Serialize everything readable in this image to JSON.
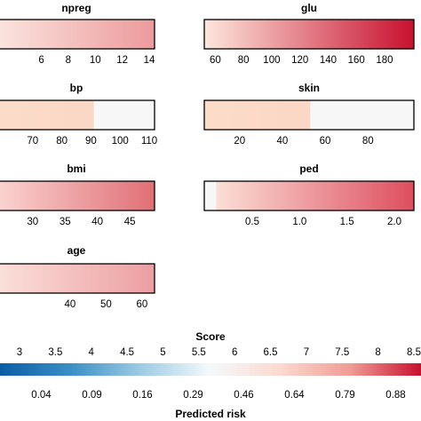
{
  "chart_data": {
    "type": "heatmap",
    "panels": [
      {
        "id": "npreg",
        "title": "npreg",
        "ticks": [
          6,
          8,
          10,
          12,
          14
        ],
        "range": [
          3.2,
          14
        ],
        "filled_to": 14,
        "color_from": "#fbe4de",
        "color_to": "#ec9a9c"
      },
      {
        "id": "glu",
        "title": "glu",
        "ticks": [
          60,
          80,
          100,
          120,
          140,
          160,
          180
        ],
        "range": [
          56,
          197
        ],
        "filled_to": 197,
        "color_from": "#fde6dc",
        "color_to": "#c8102e"
      },
      {
        "id": "bp",
        "title": "bp",
        "ticks": [
          70,
          80,
          90,
          100,
          110
        ],
        "range": [
          60,
          110
        ],
        "filled_to": 91,
        "color_from": "#fcdcc9",
        "color_to": "#fbd7c5"
      },
      {
        "id": "skin",
        "title": "skin",
        "ticks": [
          20,
          40,
          60,
          80
        ],
        "range": [
          6,
          99
        ],
        "filled_to": 53,
        "color_from": "#fcdcc9",
        "color_to": "#fbd7c5"
      },
      {
        "id": "bmi",
        "title": "bmi",
        "ticks": [
          30,
          35,
          40,
          45
        ],
        "range": [
          25.5,
          48
        ],
        "filled_to": 48,
        "color_from": "#fbd3d0",
        "color_to": "#e06f75"
      },
      {
        "id": "ped",
        "title": "ped",
        "ticks": [
          "0.5",
          "1.0",
          "1.5",
          "2.0"
        ],
        "range": [
          0.05,
          2.15
        ],
        "filled_to": 2.15,
        "start_gap_to": 0.12,
        "color_from": "#fbdfd6",
        "color_to": "#de4e5f"
      },
      {
        "id": "age",
        "title": "age",
        "ticks": [
          40,
          50,
          60
        ],
        "range": [
          21.5,
          62
        ],
        "filled_to": 62,
        "color_from": "#fbe0da",
        "color_to": "#ec9ea2"
      }
    ],
    "legend": {
      "score_label": "Score",
      "score_ticks": [
        "3",
        "3.5",
        "4",
        "4.5",
        "5",
        "5.5",
        "6",
        "6.5",
        "7",
        "7.5",
        "8",
        "8.5"
      ],
      "score_range": [
        3,
        8.5
      ],
      "risk_label": "Predicted risk",
      "risk_ticks": [
        "0.04",
        "0.09",
        "0.16",
        "0.29",
        "0.46",
        "0.64",
        "0.79",
        "0.88"
      ],
      "colors": [
        "#0a5da4",
        "#3a8fc6",
        "#9ccbe4",
        "#f5f9fc",
        "#fcd9cf",
        "#ef9b94",
        "#c8102e"
      ]
    },
    "empty_color": "#f7f7f7"
  }
}
